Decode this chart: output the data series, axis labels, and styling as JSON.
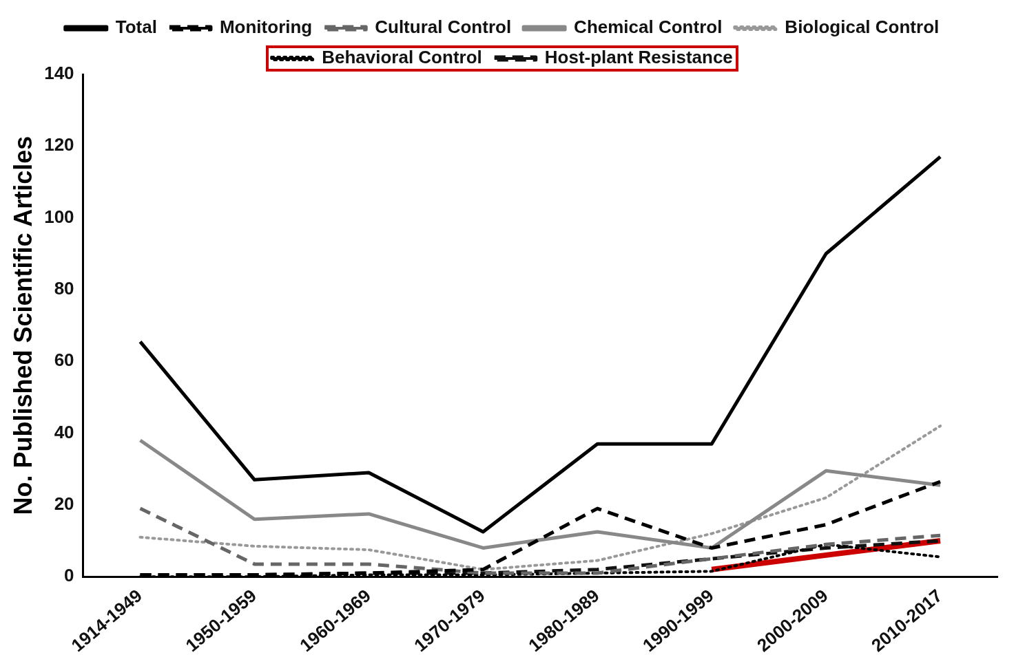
{
  "chart_data": {
    "type": "line",
    "ylabel": "No. Published Scientific Articles",
    "categories": [
      "1914-1949",
      "1950-1959",
      "1960-1969",
      "1970-1979",
      "1980-1989",
      "1990-1999",
      "2000-2009",
      "2010-2017"
    ],
    "ylim": [
      0,
      140
    ],
    "yticks": [
      0,
      20,
      40,
      60,
      80,
      100,
      120,
      140
    ],
    "grid": false,
    "legend": "top",
    "marker": "none",
    "series": [
      {
        "name": "Total",
        "color": "#000000",
        "line_style": "solid",
        "values": [
          65.5,
          27,
          29,
          12.5,
          37,
          37,
          90,
          117
        ]
      },
      {
        "name": "Monitoring",
        "color": "#000000",
        "line_style": "dashed",
        "values": [
          0.5,
          0.5,
          1,
          2,
          19,
          8,
          14.5,
          26.5
        ]
      },
      {
        "name": "Cultural Control",
        "color": "#666666",
        "line_style": "dashed",
        "values": [
          19,
          3.5,
          3.5,
          1,
          1,
          5,
          9,
          11.5
        ]
      },
      {
        "name": "Chemical Control",
        "color": "#888888",
        "line_style": "solid",
        "values": [
          38,
          16,
          17.5,
          8,
          12.5,
          8,
          29.5,
          25.5
        ]
      },
      {
        "name": "Biological Control",
        "color": "#999999",
        "line_style": "dotted",
        "values": [
          11,
          8.5,
          7.5,
          2,
          4.5,
          12,
          22,
          42
        ]
      },
      {
        "name": "Behavioral Control",
        "color": "#000000",
        "line_style": "dotted",
        "values": [
          0,
          0,
          0.5,
          0.5,
          1,
          1.5,
          9,
          5.5
        ]
      },
      {
        "name": "Host-plant Resistance",
        "color": "#111111",
        "line_style": "dashed",
        "values": [
          0.5,
          0.5,
          1,
          1,
          2,
          5,
          8,
          10
        ]
      },
      {
        "color": "#cc0000",
        "line_style": "solid",
        "values": [
          null,
          null,
          null,
          null,
          null,
          2,
          6,
          10
        ]
      }
    ]
  }
}
